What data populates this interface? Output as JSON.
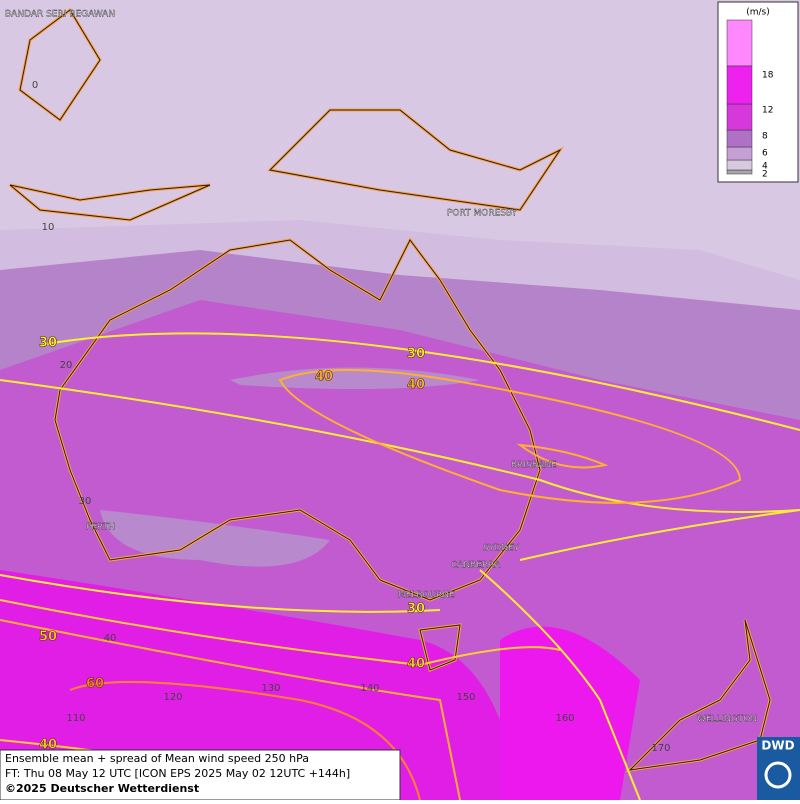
{
  "map": {
    "cities": [
      "BANDAR SERI BEGAWAN",
      "PORT MORESBY",
      "BRISBANE",
      "SYDNEY",
      "CANBERRA",
      "MELBOURNE",
      "PERTH",
      "WELLINGTON"
    ],
    "lat_labels": [
      0,
      10,
      20,
      30,
      40
    ],
    "lon_labels": [
      110,
      120,
      130,
      140,
      150,
      160,
      170
    ],
    "contour_labels": [
      30,
      30,
      40,
      40,
      50,
      60,
      40,
      30,
      40
    ]
  },
  "legend": {
    "unit": "(m/s)",
    "levels": [
      {
        "value": 2,
        "color": "#a8a8a8"
      },
      {
        "value": 4,
        "color": "#d8c8e0"
      },
      {
        "value": 6,
        "color": "#c4a0d4"
      },
      {
        "value": 8,
        "color": "#b070c8"
      },
      {
        "value": 12,
        "color": "#d638dc"
      },
      {
        "value": 18,
        "color": "#ee22ee"
      }
    ],
    "top_color": "#ff88ff"
  },
  "footer": {
    "lines": [
      "Ensemble mean + spread of Mean wind speed 250 hPa",
      "FT: Thu 08 May 12 UTC [ICON EPS 2025 May 02 12UTC +144h]",
      "©2025 Deutscher Wetterdienst"
    ]
  },
  "logo": "DWD"
}
